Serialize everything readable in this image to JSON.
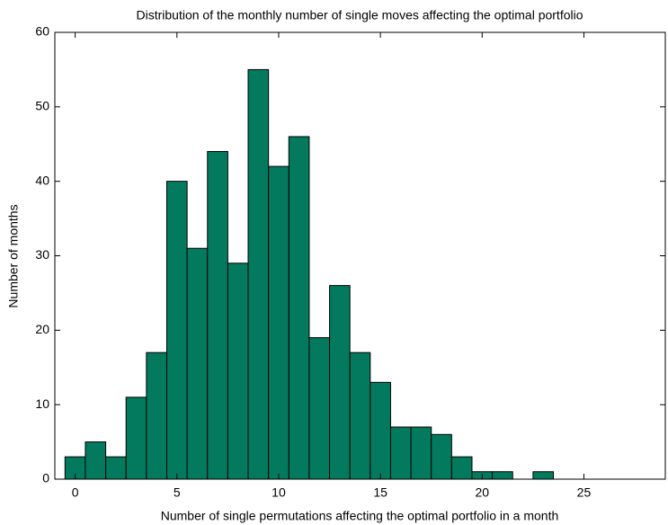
{
  "chart_data": {
    "type": "histogram",
    "title": "Distribution of the monthly number of single moves affecting the optimal portfolio",
    "x_label": "Number of single permutations affecting the optimal portfolio in a month",
    "y_label": "Number of months",
    "bins": [
      -0.5,
      0.5,
      1.5,
      2.5,
      3.5,
      4.5,
      5.5,
      6.5,
      7.5,
      8.5,
      9.5,
      10.5,
      11.5,
      12.5,
      13.5,
      14.5,
      15.5,
      16.5,
      17.5,
      18.5,
      19.5,
      20.5,
      21.5,
      22.5,
      23.5
    ],
    "values": [
      3,
      5,
      3,
      11,
      17,
      40,
      31,
      44,
      29,
      55,
      42,
      46,
      19,
      26,
      17,
      13,
      7,
      7,
      6,
      3,
      1,
      1,
      0,
      1
    ],
    "color": "#037a5e",
    "xlim": [
      -1,
      29
    ],
    "xticks": [
      0,
      5,
      10,
      15,
      20,
      25
    ],
    "ylim": [
      0,
      60
    ],
    "yticks": [
      0,
      10,
      20,
      30,
      40,
      50,
      60
    ]
  }
}
